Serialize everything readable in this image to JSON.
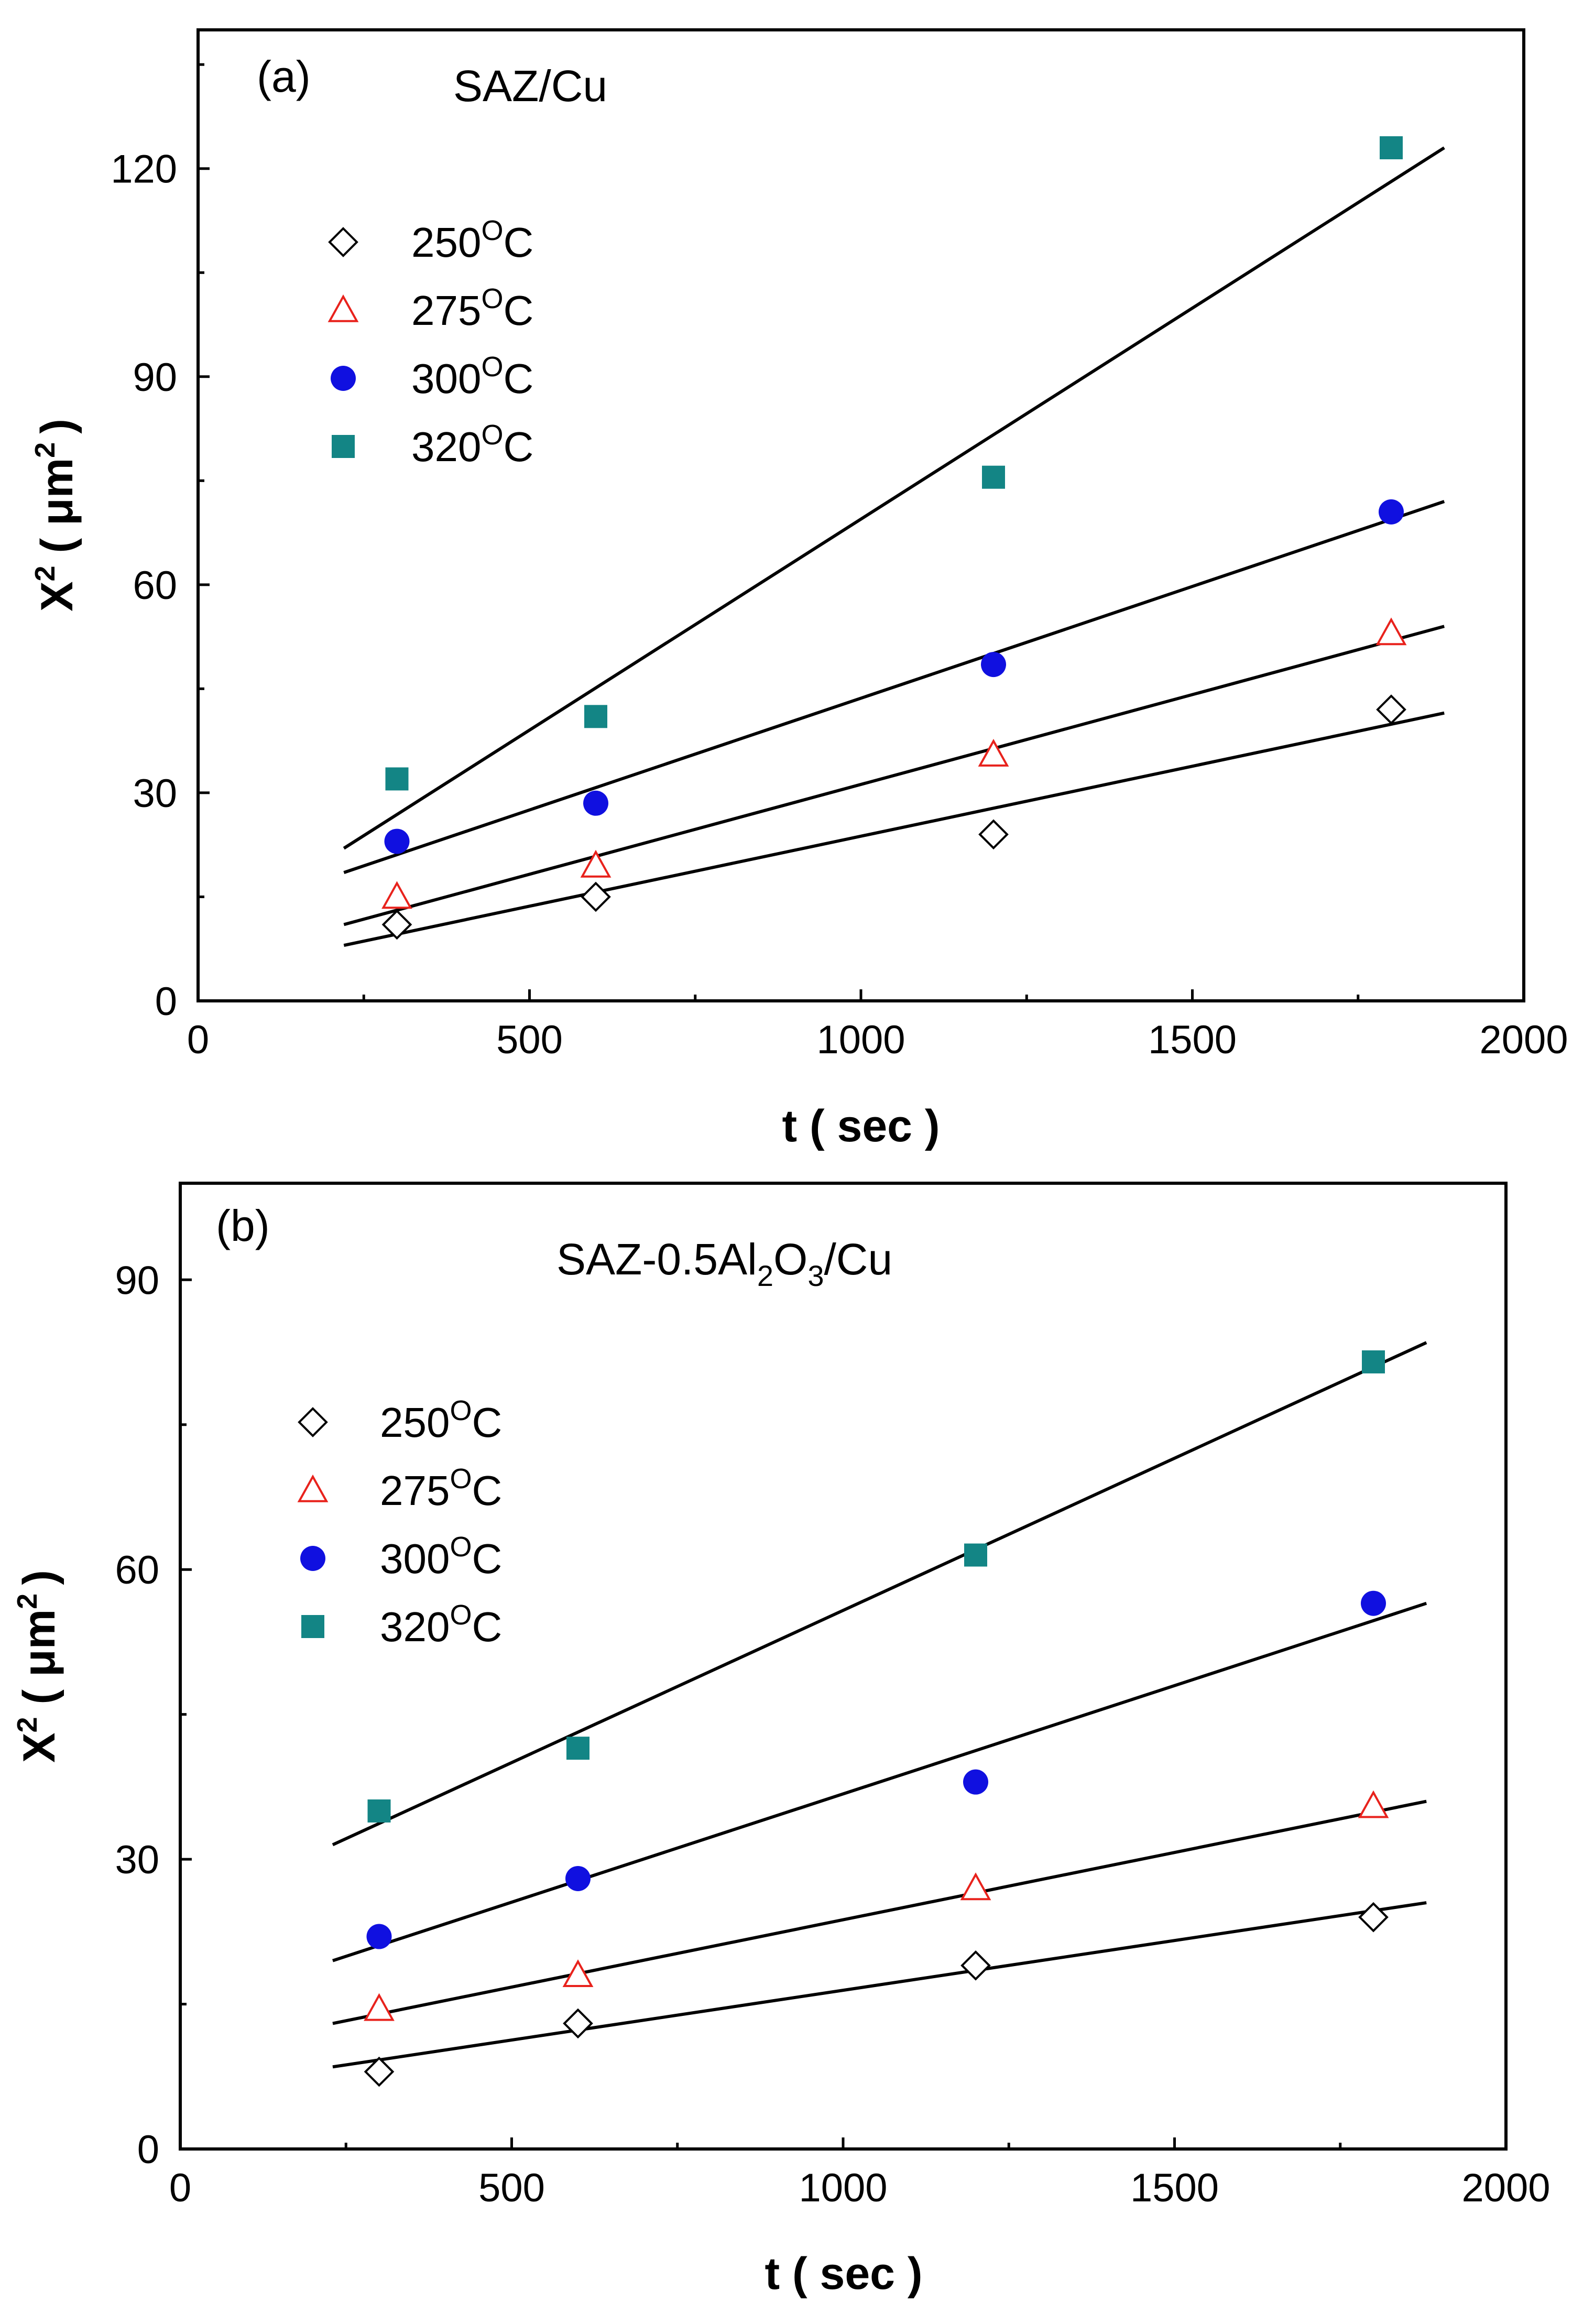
{
  "chart_data": [
    {
      "type": "scatter",
      "panel_label": "(a)",
      "title": "SAZ/Cu",
      "xlabel": "t ( sec )",
      "ylabel": "X",
      "ylabel_sup": "2",
      "ylabel_unit": "( μm",
      "ylabel_unit_sup": "2",
      "ylabel_close": ")",
      "xlim": [
        0,
        2000
      ],
      "ylim": [
        0,
        140
      ],
      "xticks": [
        0,
        500,
        1000,
        1500,
        2000
      ],
      "xtick_labels": [
        "0",
        "500",
        "1000",
        "1500",
        "2000"
      ],
      "yticks": [
        0,
        30,
        60,
        90,
        120
      ],
      "ytick_labels": [
        "0",
        "30",
        "60",
        "90",
        "120"
      ],
      "legend_position": "upper-left",
      "series": [
        {
          "name": "250",
          "unit": "O",
          "suffix": "C",
          "marker": "diamond-open",
          "color": "#000000",
          "x": [
            300,
            600,
            1200,
            1800
          ],
          "y": [
            11,
            15,
            24,
            42
          ],
          "fit": {
            "x": [
              220,
              1880
            ],
            "y": [
              8,
              41.5
            ]
          }
        },
        {
          "name": "275",
          "unit": "O",
          "suffix": "C",
          "marker": "triangle-open",
          "color": "#e8221c",
          "x": [
            300,
            600,
            1200,
            1800
          ],
          "y": [
            15,
            19.5,
            35.5,
            53
          ],
          "fit": {
            "x": [
              220,
              1880
            ],
            "y": [
              11,
              54
            ]
          }
        },
        {
          "name": "300",
          "unit": "O",
          "suffix": "C",
          "marker": "circle-filled",
          "color": "#1010e0",
          "x": [
            300,
            600,
            1200,
            1800
          ],
          "y": [
            23,
            28.5,
            48.5,
            70.5
          ],
          "fit": {
            "x": [
              220,
              1880
            ],
            "y": [
              18.5,
              72
            ]
          }
        },
        {
          "name": "320",
          "unit": "O",
          "suffix": "C",
          "marker": "square-filled",
          "color": "#138585",
          "x": [
            300,
            600,
            1200,
            1800
          ],
          "y": [
            32,
            41,
            75.5,
            123
          ],
          "fit": {
            "x": [
              220,
              1880
            ],
            "y": [
              22,
              123
            ]
          }
        }
      ]
    },
    {
      "type": "scatter",
      "panel_label": "(b)",
      "title": "SAZ-0.5Al",
      "title_sub1": "2",
      "title_mid": "O",
      "title_sub2": "3",
      "title_end": "/Cu",
      "xlabel": "t ( sec )",
      "ylabel": "X",
      "ylabel_sup": "2",
      "ylabel_unit": "( μm",
      "ylabel_unit_sup": "2",
      "ylabel_close": ")",
      "xlim": [
        0,
        2000
      ],
      "ylim": [
        0,
        100
      ],
      "xticks": [
        0,
        500,
        1000,
        1500,
        2000
      ],
      "xtick_labels": [
        "0",
        "500",
        "1000",
        "1500",
        "2000"
      ],
      "yticks": [
        0,
        30,
        60,
        90
      ],
      "ytick_labels": [
        "0",
        "30",
        "60",
        "90"
      ],
      "legend_position": "center-left",
      "series": [
        {
          "name": "250",
          "unit": "O",
          "suffix": "C",
          "marker": "diamond-open",
          "color": "#000000",
          "x": [
            300,
            600,
            1200,
            1800
          ],
          "y": [
            8,
            13,
            19,
            24
          ],
          "fit": {
            "x": [
              230,
              1880
            ],
            "y": [
              8.5,
              25.5
            ]
          }
        },
        {
          "name": "275",
          "unit": "O",
          "suffix": "C",
          "marker": "triangle-open",
          "color": "#e8221c",
          "x": [
            300,
            600,
            1200,
            1800
          ],
          "y": [
            14.5,
            18,
            27,
            35.5
          ],
          "fit": {
            "x": [
              230,
              1880
            ],
            "y": [
              13,
              36
            ]
          }
        },
        {
          "name": "300",
          "unit": "O",
          "suffix": "C",
          "marker": "circle-filled",
          "color": "#1010e0",
          "x": [
            300,
            600,
            1200,
            1800
          ],
          "y": [
            22,
            28,
            38,
            56.5
          ],
          "fit": {
            "x": [
              230,
              1880
            ],
            "y": [
              19.5,
              56.5
            ]
          }
        },
        {
          "name": "320",
          "unit": "O",
          "suffix": "C",
          "marker": "square-filled",
          "color": "#138585",
          "x": [
            300,
            600,
            1200,
            1800
          ],
          "y": [
            35,
            41.5,
            61.5,
            81.5
          ],
          "fit": {
            "x": [
              230,
              1880
            ],
            "y": [
              31.5,
              83.5
            ]
          }
        }
      ]
    }
  ]
}
